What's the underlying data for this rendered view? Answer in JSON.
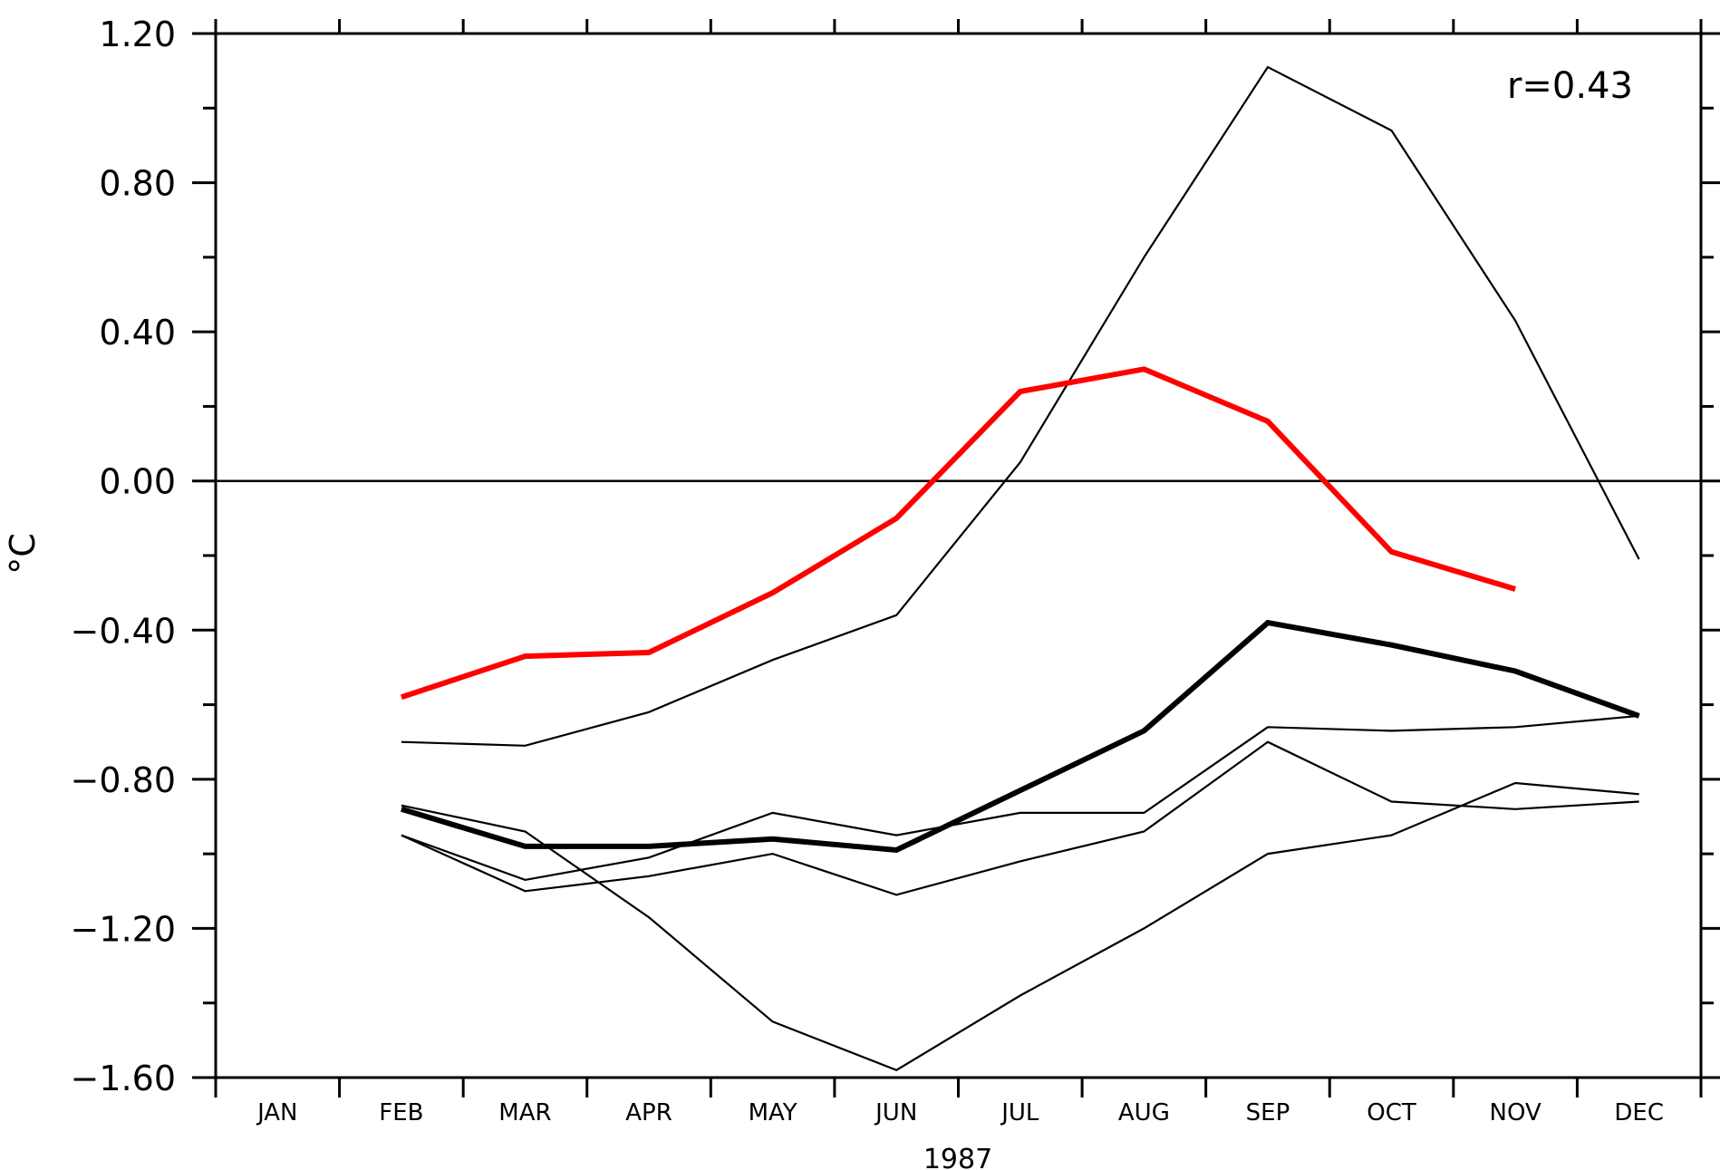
{
  "chart_data": {
    "type": "line",
    "title": "",
    "xlabel": "1987",
    "ylabel": "°C",
    "annotation": "r=0.43",
    "categories": [
      "JAN",
      "FEB",
      "MAR",
      "APR",
      "MAY",
      "JUN",
      "JUL",
      "AUG",
      "SEP",
      "OCT",
      "NOV",
      "DEC"
    ],
    "ylim": [
      -1.6,
      1.2
    ],
    "yticks": [
      1.2,
      0.8,
      0.4,
      0.0,
      -0.4,
      -0.8,
      -1.2,
      -1.6
    ],
    "ytick_labels": [
      "1.20",
      "0.80",
      "0.40",
      "0.00",
      "−0.40",
      "−0.80",
      "−1.20",
      "−1.60"
    ],
    "grid": false,
    "zero_line": true,
    "series": [
      {
        "style": "thick-red",
        "color": "#ff0000",
        "values": [
          null,
          -0.58,
          -0.47,
          -0.46,
          -0.3,
          -0.1,
          0.24,
          0.3,
          0.16,
          -0.19,
          -0.29,
          null
        ]
      },
      {
        "style": "thick-black",
        "color": "#000000",
        "values": [
          null,
          -0.88,
          -0.98,
          -0.98,
          -0.96,
          -0.99,
          -0.83,
          -0.67,
          -0.38,
          -0.44,
          -0.51,
          -0.63
        ]
      },
      {
        "style": "thin-black",
        "color": "#000000",
        "values": [
          null,
          -0.7,
          -0.71,
          -0.62,
          -0.48,
          -0.36,
          0.05,
          0.6,
          1.11,
          0.94,
          0.43,
          -0.21
        ]
      },
      {
        "style": "thin-black",
        "color": "#000000",
        "values": [
          null,
          -0.87,
          -0.94,
          -1.17,
          -1.45,
          -1.58,
          -1.38,
          -1.2,
          -1.0,
          -0.95,
          -0.81,
          -0.84
        ]
      },
      {
        "style": "thin-black",
        "color": "#000000",
        "values": [
          null,
          -0.95,
          -1.07,
          -1.01,
          -0.89,
          -0.95,
          -0.89,
          -0.89,
          -0.66,
          -0.67,
          -0.66,
          -0.63
        ]
      },
      {
        "style": "thin-black",
        "color": "#000000",
        "values": [
          null,
          -0.95,
          -1.1,
          -1.06,
          -1.0,
          -1.11,
          -1.02,
          -0.94,
          -0.7,
          -0.86,
          -0.88,
          -0.86
        ]
      }
    ]
  }
}
